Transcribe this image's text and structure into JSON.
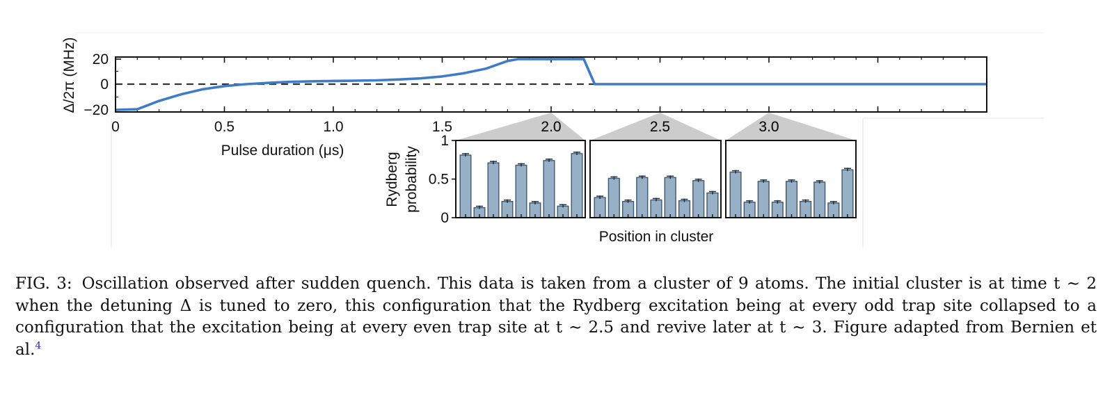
{
  "figure": {
    "main_plot": {
      "ylabel": "Δ/2π (MHz)",
      "xlabel": "Pulse duration (μs)"
    },
    "insets": {
      "ylabel_line1": "Rydberg",
      "ylabel_line2": "probability",
      "xlabel": "Position in cluster"
    }
  },
  "chart_data": [
    {
      "type": "line",
      "xlabel": "Pulse duration (μs)",
      "ylabel": "Δ/2π (MHz)",
      "xlim": [
        0,
        4.0
      ],
      "ylim": [
        -20,
        20
      ],
      "x_ticks": [
        "0",
        "0.5",
        "1.0",
        "1.5",
        "2.0",
        "2.5",
        "3.0"
      ],
      "x_tick_values": [
        0,
        0.5,
        1.0,
        1.5,
        2.0,
        2.5,
        3.0
      ],
      "y_ticks": [
        "20",
        "0",
        "−20"
      ],
      "y_tick_values": [
        20,
        0,
        -20
      ],
      "reference_line": {
        "y": 0,
        "style": "dashed"
      },
      "series": [
        {
          "color": "#3f7cc8",
          "x": [
            0,
            0.1,
            0.2,
            0.3,
            0.4,
            0.5,
            0.6,
            0.7,
            0.8,
            0.9,
            1.0,
            1.1,
            1.2,
            1.3,
            1.4,
            1.5,
            1.6,
            1.7,
            1.8,
            1.85,
            2.0,
            2.1,
            2.15,
            2.2,
            4.0
          ],
          "y": [
            -20,
            -19.5,
            -13,
            -8,
            -4,
            -1.5,
            0,
            1,
            1.8,
            2.2,
            2.5,
            2.7,
            3,
            3.6,
            4.5,
            6,
            8.5,
            12,
            18,
            19.5,
            19.5,
            19.5,
            19.5,
            0,
            0
          ]
        }
      ]
    },
    {
      "type": "bar",
      "time_label": "2.0",
      "categories": [
        1,
        2,
        3,
        4,
        5,
        6,
        7,
        8,
        9
      ],
      "values": [
        0.81,
        0.13,
        0.71,
        0.21,
        0.68,
        0.19,
        0.74,
        0.15,
        0.83
      ],
      "ylim": [
        0,
        1
      ],
      "y_ticks": [
        "0",
        "0.5",
        "1"
      ],
      "y_tick_values": [
        0,
        0.5,
        1
      ],
      "xlabel": "Position in cluster",
      "ylabel": "Rydberg probability"
    },
    {
      "type": "bar",
      "time_label": "2.5",
      "categories": [
        1,
        2,
        3,
        4,
        5,
        6,
        7,
        8,
        9
      ],
      "values": [
        0.26,
        0.51,
        0.21,
        0.52,
        0.23,
        0.52,
        0.22,
        0.48,
        0.32
      ],
      "ylim": [
        0,
        1
      ],
      "xlabel": "Position in cluster"
    },
    {
      "type": "bar",
      "time_label": "3.0",
      "categories": [
        1,
        2,
        3,
        4,
        5,
        6,
        7,
        8,
        9
      ],
      "values": [
        0.59,
        0.2,
        0.47,
        0.2,
        0.47,
        0.21,
        0.46,
        0.19,
        0.62
      ],
      "ylim": [
        0,
        1
      ],
      "xlabel": "Position in cluster"
    }
  ],
  "caption": {
    "label": "FIG. 3:",
    "text": "Oscillation observed after sudden quench. This data is taken from a cluster of 9 atoms. The initial cluster is at time t ∼ 2 when the detuning Δ is tuned to zero, this configuration that the Rydberg excitation being at every odd trap site collapsed to a configuration that the excitation being at every even trap site at t ∼ 2.5 and revive later at t ∼ 3. Figure adapted from Bernien et al.",
    "ref": "4"
  },
  "colors": {
    "line": "#3f7cc8",
    "bar_fill": "#98b0c6",
    "bar_stroke": "#3d5872",
    "wedge": "#cccccc"
  }
}
